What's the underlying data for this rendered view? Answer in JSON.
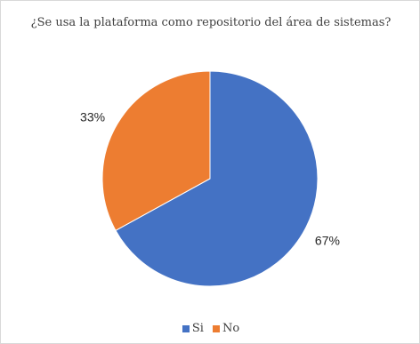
{
  "chart_data": {
    "type": "pie",
    "title": "¿Se usa la plataforma como repositorio del área de sistemas?",
    "categories": [
      "Si",
      "No"
    ],
    "values": [
      67,
      33
    ],
    "labels": [
      "67%",
      "33%"
    ],
    "colors": [
      "#4472C4",
      "#ED7D31"
    ],
    "legend_position": "bottom"
  }
}
